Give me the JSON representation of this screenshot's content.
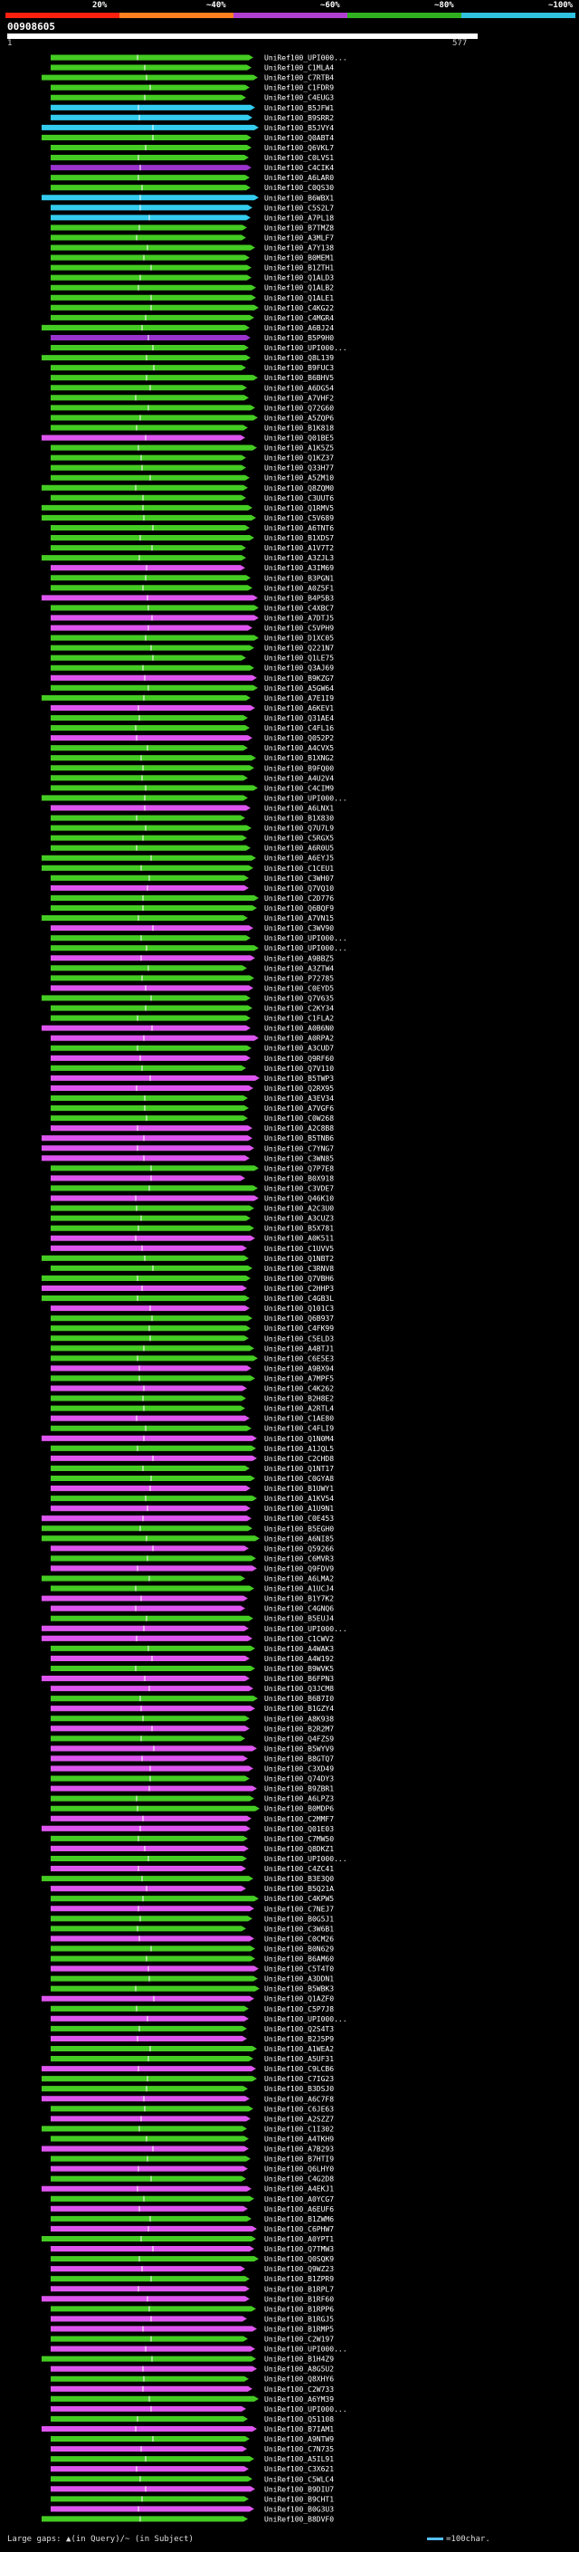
{
  "header": {
    "identity_scale": [
      {
        "label": "20%",
        "color": "#ff2010"
      },
      {
        "label": "~40%",
        "color": "#ff8020"
      },
      {
        "label": "~60%",
        "color": "#b040d0"
      },
      {
        "label": "~80%",
        "color": "#30b020"
      },
      {
        "label": "~100%",
        "color": "#30c0e0"
      }
    ],
    "query_id": "00908605",
    "range_start": "1",
    "range_end": "577"
  },
  "colors": {
    "green": "#44cc22",
    "magenta": "#dd55ee",
    "cyan": "#33ccee",
    "purple": "#9933cc",
    "gap": "#ffffff"
  },
  "footer": {
    "gaps_legend": "Large gaps: ▲(in Query)/~ (in Subject)",
    "scale_legend": "=100char."
  },
  "hits": [
    {
      "label": "UniRef100_UPI000...",
      "c": "g"
    },
    {
      "label": "UniRef100_C1MLA4",
      "c": "g"
    },
    {
      "label": "UniRef100_C7RTB4",
      "c": "g"
    },
    {
      "label": "UniRef100_C1FDR9",
      "c": "g"
    },
    {
      "label": "UniRef100_C4EUG3",
      "c": "g"
    },
    {
      "label": "UniRef100_B5JFW1",
      "c": "c"
    },
    {
      "label": "UniRef100_B9SRR2",
      "c": "c"
    },
    {
      "label": "UniRef100_B5JVY4",
      "c": "c"
    },
    {
      "label": "UniRef100_Q0ABT4",
      "c": "g"
    },
    {
      "label": "UniRef100_Q6VKL7",
      "c": "g"
    },
    {
      "label": "UniRef100_C0LVS1",
      "c": "g"
    },
    {
      "label": "UniRef100_C4CIK4",
      "c": "p"
    },
    {
      "label": "UniRef100_A6LAR0",
      "c": "g"
    },
    {
      "label": "UniRef100_C0QS30",
      "c": "g"
    },
    {
      "label": "UniRef100_B6WBX1",
      "c": "c"
    },
    {
      "label": "UniRef100_C5S2L7",
      "c": "c"
    },
    {
      "label": "UniRef100_A7PL18",
      "c": "c"
    },
    {
      "label": "UniRef100_B7TMZ8",
      "c": "g"
    },
    {
      "label": "UniRef100_A3MLF7",
      "c": "g"
    },
    {
      "label": "UniRef100_A7Y138",
      "c": "g"
    },
    {
      "label": "UniRef100_B0MEM1",
      "c": "g"
    },
    {
      "label": "UniRef100_B1ZTH1",
      "c": "g"
    },
    {
      "label": "UniRef100_Q1ALD3",
      "c": "g"
    },
    {
      "label": "UniRef100_Q1ALB2",
      "c": "g"
    },
    {
      "label": "UniRef100_Q1ALE1",
      "c": "g"
    },
    {
      "label": "UniRef100_C4KG22",
      "c": "g"
    },
    {
      "label": "UniRef100_C4MGR4",
      "c": "g"
    },
    {
      "label": "UniRef100_A6BJ24",
      "c": "g"
    },
    {
      "label": "UniRef100_B5P9H0",
      "c": "p"
    },
    {
      "label": "UniRef100_UPI000...",
      "c": "g"
    },
    {
      "label": "UniRef100_Q8L139",
      "c": "g"
    },
    {
      "label": "UniRef100_B9FUC3",
      "c": "g"
    },
    {
      "label": "UniRef100_B6BHV5",
      "c": "g"
    },
    {
      "label": "UniRef100_A6DG54",
      "c": "g"
    },
    {
      "label": "UniRef100_A7VHF2",
      "c": "g"
    },
    {
      "label": "UniRef100_Q72G60",
      "c": "g"
    },
    {
      "label": "UniRef100_A5ZQP6",
      "c": "g"
    },
    {
      "label": "UniRef100_B1K818",
      "c": "g"
    },
    {
      "label": "UniRef100_Q01BE5",
      "c": "m"
    },
    {
      "label": "UniRef100_A1K5Z5",
      "c": "g"
    },
    {
      "label": "UniRef100_Q1KZ37",
      "c": "g"
    },
    {
      "label": "UniRef100_Q33H77",
      "c": "g"
    },
    {
      "label": "UniRef100_A5ZM10",
      "c": "g"
    },
    {
      "label": "UniRef100_Q8ZQM0",
      "c": "g"
    },
    {
      "label": "UniRef100_C3UUT6",
      "c": "g"
    },
    {
      "label": "UniRef100_Q1RMV5",
      "c": "g"
    },
    {
      "label": "UniRef100_C5V689",
      "c": "g"
    },
    {
      "label": "UniRef100_A6TNT6",
      "c": "g"
    },
    {
      "label": "UniRef100_B1XDS7",
      "c": "g"
    },
    {
      "label": "UniRef100_A1V7T2",
      "c": "g"
    },
    {
      "label": "UniRef100_A3ZJL3",
      "c": "g"
    },
    {
      "label": "UniRef100_A3IM69",
      "c": "m"
    },
    {
      "label": "UniRef100_B3PGN1",
      "c": "g"
    },
    {
      "label": "UniRef100_A0Z5F1",
      "c": "g"
    },
    {
      "label": "UniRef100_B4P5B3",
      "c": "m"
    },
    {
      "label": "UniRef100_C4XBC7",
      "c": "g"
    },
    {
      "label": "UniRef100_A7DTJ5",
      "c": "m"
    },
    {
      "label": "UniRef100_C5VPH9",
      "c": "m"
    },
    {
      "label": "UniRef100_D1XC05",
      "c": "g"
    },
    {
      "label": "UniRef100_Q221N7",
      "c": "g"
    },
    {
      "label": "UniRef100_Q1LE75",
      "c": "g"
    },
    {
      "label": "UniRef100_Q3AJ69",
      "c": "g"
    },
    {
      "label": "UniRef100_B9KZG7",
      "c": "m"
    },
    {
      "label": "UniRef100_A5GW64",
      "c": "g"
    },
    {
      "label": "UniRef100_A7E1I9",
      "c": "g"
    },
    {
      "label": "UniRef100_A6KEV1",
      "c": "m"
    },
    {
      "label": "UniRef100_Q31AE4",
      "c": "g"
    },
    {
      "label": "UniRef100_C4FL16",
      "c": "g"
    },
    {
      "label": "UniRef100_Q052P2",
      "c": "m"
    },
    {
      "label": "UniRef100_A4CVX5",
      "c": "g"
    },
    {
      "label": "UniRef100_B1XNG2",
      "c": "g"
    },
    {
      "label": "UniRef100_B9FQ00",
      "c": "g"
    },
    {
      "label": "UniRef100_A4U2V4",
      "c": "g"
    },
    {
      "label": "UniRef100_C4CIM9",
      "c": "g"
    },
    {
      "label": "UniRef100_UPI000...",
      "c": "g"
    },
    {
      "label": "UniRef100_A6LNX1",
      "c": "m"
    },
    {
      "label": "UniRef100_B1X830",
      "c": "g"
    },
    {
      "label": "UniRef100_Q7U7L9",
      "c": "g"
    },
    {
      "label": "UniRef100_C5RGX5",
      "c": "g"
    },
    {
      "label": "UniRef100_A6R0U5",
      "c": "g"
    },
    {
      "label": "UniRef100_A6EYJ5",
      "c": "g"
    },
    {
      "label": "UniRef100_C1CEU1",
      "c": "g"
    },
    {
      "label": "UniRef100_C3WH07",
      "c": "g"
    },
    {
      "label": "UniRef100_Q7VQ10",
      "c": "m"
    },
    {
      "label": "UniRef100_C2D776",
      "c": "g"
    },
    {
      "label": "UniRef100_Q6BQF9",
      "c": "g"
    },
    {
      "label": "UniRef100_A7VN15",
      "c": "g"
    },
    {
      "label": "UniRef100_C3WV90",
      "c": "m"
    },
    {
      "label": "UniRef100_UPI000...",
      "c": "g"
    },
    {
      "label": "UniRef100_UPI000...",
      "c": "g"
    },
    {
      "label": "UniRef100_A9BBZ5",
      "c": "m"
    },
    {
      "label": "UniRef100_A3ZTW4",
      "c": "g"
    },
    {
      "label": "UniRef100_P72785",
      "c": "g"
    },
    {
      "label": "UniRef100_C0EYD5",
      "c": "m"
    },
    {
      "label": "UniRef100_Q7V635",
      "c": "g"
    },
    {
      "label": "UniRef100_C2KY34",
      "c": "g"
    },
    {
      "label": "UniRef100_C1FLA2",
      "c": "g"
    },
    {
      "label": "UniRef100_A0B6N0",
      "c": "m"
    },
    {
      "label": "UniRef100_A0RPA2",
      "c": "m"
    },
    {
      "label": "UniRef100_A3CUD7",
      "c": "g"
    },
    {
      "label": "UniRef100_Q9RF60",
      "c": "m"
    },
    {
      "label": "UniRef100_Q7V110",
      "c": "g"
    },
    {
      "label": "UniRef100_B5TWP3",
      "c": "m"
    },
    {
      "label": "UniRef100_Q2RX95",
      "c": "m"
    },
    {
      "label": "UniRef100_A3EV34",
      "c": "g"
    },
    {
      "label": "UniRef100_A7VGF6",
      "c": "g"
    },
    {
      "label": "UniRef100_C0W268",
      "c": "g"
    },
    {
      "label": "UniRef100_A2C8B8",
      "c": "m"
    },
    {
      "label": "UniRef100_B5TNB6",
      "c": "m"
    },
    {
      "label": "UniRef100_C7YNG7",
      "c": "m"
    },
    {
      "label": "UniRef100_C3WN85",
      "c": "m"
    },
    {
      "label": "UniRef100_Q7P7E8",
      "c": "g"
    },
    {
      "label": "UniRef100_B0X918",
      "c": "m"
    },
    {
      "label": "UniRef100_C3VDE7",
      "c": "g"
    },
    {
      "label": "UniRef100_Q46K10",
      "c": "m"
    },
    {
      "label": "UniRef100_A2C3U0",
      "c": "g"
    },
    {
      "label": "UniRef100_A3CUZ3",
      "c": "g"
    },
    {
      "label": "UniRef100_B5X781",
      "c": "g"
    },
    {
      "label": "UniRef100_A0K511",
      "c": "m"
    },
    {
      "label": "UniRef100_C1UVV5",
      "c": "m"
    },
    {
      "label": "UniRef100_Q1NBT2",
      "c": "g"
    },
    {
      "label": "UniRef100_C3RNV8",
      "c": "g"
    },
    {
      "label": "UniRef100_Q7VBH6",
      "c": "g"
    },
    {
      "label": "UniRef100_C2HHP3",
      "c": "m"
    },
    {
      "label": "UniRef100_C4GB3L",
      "c": "g"
    },
    {
      "label": "UniRef100_Q101C3",
      "c": "m"
    },
    {
      "label": "UniRef100_Q6B937",
      "c": "g"
    },
    {
      "label": "UniRef100_C4FK99",
      "c": "g"
    },
    {
      "label": "UniRef100_C5ELD3",
      "c": "g"
    },
    {
      "label": "UniRef100_A4BTJ1",
      "c": "g"
    },
    {
      "label": "UniRef100_C6E5E3",
      "c": "g"
    },
    {
      "label": "UniRef100_A9BX94",
      "c": "m"
    },
    {
      "label": "UniRef100_A7MPF5",
      "c": "g"
    },
    {
      "label": "UniRef100_C4K262",
      "c": "m"
    },
    {
      "label": "UniRef100_B2H8E2",
      "c": "g"
    },
    {
      "label": "UniRef100_A2RTL4",
      "c": "g"
    },
    {
      "label": "UniRef100_C1AE80",
      "c": "m"
    },
    {
      "label": "UniRef100_C4FLI9",
      "c": "g"
    },
    {
      "label": "UniRef100_Q1N0M4",
      "c": "m"
    },
    {
      "label": "UniRef100_A1JQL5",
      "c": "g"
    },
    {
      "label": "UniRef100_C2CHD8",
      "c": "m"
    },
    {
      "label": "UniRef100_Q1NT17",
      "c": "g"
    },
    {
      "label": "UniRef100_C0GYA8",
      "c": "g"
    },
    {
      "label": "UniRef100_B1UWY1",
      "c": "m"
    },
    {
      "label": "UniRef100_A1KV54",
      "c": "g"
    },
    {
      "label": "UniRef100_A1U9N1",
      "c": "m"
    },
    {
      "label": "UniRef100_C0E453",
      "c": "m"
    },
    {
      "label": "UniRef100_B5EGH0",
      "c": "g"
    },
    {
      "label": "UniRef100_A6NI85",
      "c": "g"
    },
    {
      "label": "UniRef100_Q59266",
      "c": "m"
    },
    {
      "label": "UniRef100_C6MVR3",
      "c": "g"
    },
    {
      "label": "UniRef100_Q9FDV9",
      "c": "m"
    },
    {
      "label": "UniRef100_A6LMA2",
      "c": "g"
    },
    {
      "label": "UniRef100_A1UCJ4",
      "c": "g"
    },
    {
      "label": "UniRef100_B1Y7K2",
      "c": "m"
    },
    {
      "label": "UniRef100_C4GNQ6",
      "c": "m"
    },
    {
      "label": "UniRef100_B5EUJ4",
      "c": "g"
    },
    {
      "label": "UniRef100_UPI000...",
      "c": "m"
    },
    {
      "label": "UniRef100_C1CWV2",
      "c": "m"
    },
    {
      "label": "UniRef100_A4WAK3",
      "c": "g"
    },
    {
      "label": "UniRef100_A4W192",
      "c": "m"
    },
    {
      "label": "UniRef100_B9WVK5",
      "c": "g"
    },
    {
      "label": "UniRef100_B6FPN3",
      "c": "m"
    },
    {
      "label": "UniRef100_Q3JCM8",
      "c": "m"
    },
    {
      "label": "UniRef100_B6B7I0",
      "c": "g"
    },
    {
      "label": "UniRef100_B1GZY4",
      "c": "m"
    },
    {
      "label": "UniRef100_A8K938",
      "c": "g"
    },
    {
      "label": "UniRef100_B2R2M7",
      "c": "m"
    },
    {
      "label": "UniRef100_Q4FZS9",
      "c": "g"
    },
    {
      "label": "UniRef100_B5WYV9",
      "c": "m"
    },
    {
      "label": "UniRef100_B8GTQ7",
      "c": "m"
    },
    {
      "label": "UniRef100_C3XD49",
      "c": "m"
    },
    {
      "label": "UniRef100_Q74DY3",
      "c": "g"
    },
    {
      "label": "UniRef100_B9ZBR1",
      "c": "m"
    },
    {
      "label": "UniRef100_A6LPZ3",
      "c": "g"
    },
    {
      "label": "UniRef100_B0MDP6",
      "c": "g"
    },
    {
      "label": "UniRef100_C2MMF7",
      "c": "m"
    },
    {
      "label": "UniRef100_Q01E03",
      "c": "m"
    },
    {
      "label": "UniRef100_C7MW50",
      "c": "g"
    },
    {
      "label": "UniRef100_Q8DKZ1",
      "c": "m"
    },
    {
      "label": "UniRef100_UPI000...",
      "c": "g"
    },
    {
      "label": "UniRef100_C4ZC41",
      "c": "m"
    },
    {
      "label": "UniRef100_B3E3Q0",
      "c": "g"
    },
    {
      "label": "UniRef100_B5Q21A",
      "c": "m"
    },
    {
      "label": "UniRef100_C4KPW5",
      "c": "g"
    },
    {
      "label": "UniRef100_C7NEJ7",
      "c": "m"
    },
    {
      "label": "UniRef100_B0G5J1",
      "c": "g"
    },
    {
      "label": "UniRef100_C3W6B1",
      "c": "g"
    },
    {
      "label": "UniRef100_C0CM26",
      "c": "m"
    },
    {
      "label": "UniRef100_B0N629",
      "c": "g"
    },
    {
      "label": "UniRef100_B6AM60",
      "c": "g"
    },
    {
      "label": "UniRef100_C5T4T0",
      "c": "m"
    },
    {
      "label": "UniRef100_A3DDN1",
      "c": "g"
    },
    {
      "label": "UniRef100_B5WBK3",
      "c": "g"
    },
    {
      "label": "UniRef100_Q1AZF0",
      "c": "m"
    },
    {
      "label": "UniRef100_C5P7J8",
      "c": "g"
    },
    {
      "label": "UniRef100_UPI000...",
      "c": "m"
    },
    {
      "label": "UniRef100_Q2S4T3",
      "c": "g"
    },
    {
      "label": "UniRef100_B2J5P9",
      "c": "m"
    },
    {
      "label": "UniRef100_A1WEA2",
      "c": "g"
    },
    {
      "label": "UniRef100_A5UF31",
      "c": "g"
    },
    {
      "label": "UniRef100_C9LCB6",
      "c": "m"
    },
    {
      "label": "UniRef100_C7IG23",
      "c": "g"
    },
    {
      "label": "UniRef100_B3DSJ0",
      "c": "g"
    },
    {
      "label": "UniRef100_A6C7F8",
      "c": "m"
    },
    {
      "label": "UniRef100_C6JE63",
      "c": "g"
    },
    {
      "label": "UniRef100_A2SZZ7",
      "c": "m"
    },
    {
      "label": "UniRef100_C1I302",
      "c": "g"
    },
    {
      "label": "UniRef100_A4TKH9",
      "c": "g"
    },
    {
      "label": "UniRef100_A7B293",
      "c": "m"
    },
    {
      "label": "UniRef100_B7HTI9",
      "c": "g"
    },
    {
      "label": "UniRef100_Q6LHY0",
      "c": "m"
    },
    {
      "label": "UniRef100_C4G2D8",
      "c": "g"
    },
    {
      "label": "UniRef100_A4EKJ1",
      "c": "m"
    },
    {
      "label": "UniRef100_A0YCG7",
      "c": "g"
    },
    {
      "label": "UniRef100_A6EUF6",
      "c": "m"
    },
    {
      "label": "UniRef100_B1ZWM6",
      "c": "g"
    },
    {
      "label": "UniRef100_C6PHW7",
      "c": "m"
    },
    {
      "label": "UniRef100_A0YPT1",
      "c": "g"
    },
    {
      "label": "UniRef100_Q7TMW3",
      "c": "m"
    },
    {
      "label": "UniRef100_Q0SQK9",
      "c": "g"
    },
    {
      "label": "UniRef100_Q9WZ23",
      "c": "m"
    },
    {
      "label": "UniRef100_B1ZPR9",
      "c": "g"
    },
    {
      "label": "UniRef100_B1RPL7",
      "c": "m"
    },
    {
      "label": "UniRef100_B1RF60",
      "c": "m"
    },
    {
      "label": "UniRef100_B1RPP6",
      "c": "g"
    },
    {
      "label": "UniRef100_B1RGJ5",
      "c": "m"
    },
    {
      "label": "UniRef100_B1RMP5",
      "c": "m"
    },
    {
      "label": "UniRef100_C2W197",
      "c": "g"
    },
    {
      "label": "UniRef100_UPI000...",
      "c": "m"
    },
    {
      "label": "UniRef100_B1H4Z9",
      "c": "g"
    },
    {
      "label": "UniRef100_A8G5U2",
      "c": "m"
    },
    {
      "label": "UniRef100_Q8XHY6",
      "c": "g"
    },
    {
      "label": "UniRef100_C2W733",
      "c": "m"
    },
    {
      "label": "UniRef100_A6YM39",
      "c": "g"
    },
    {
      "label": "UniRef100_UPI000...",
      "c": "m"
    },
    {
      "label": "UniRef100_Q51108",
      "c": "g"
    },
    {
      "label": "UniRef100_B7IAM1",
      "c": "m"
    },
    {
      "label": "UniRef100_A9NTW9",
      "c": "g"
    },
    {
      "label": "UniRef100_C7N735",
      "c": "m"
    },
    {
      "label": "UniRef100_A5IL91",
      "c": "g"
    },
    {
      "label": "UniRef100_C3X621",
      "c": "m"
    },
    {
      "label": "UniRef100_C5WLC4",
      "c": "g"
    },
    {
      "label": "UniRef100_B9DIU7",
      "c": "m"
    },
    {
      "label": "UniRef100_B9CHT1",
      "c": "g"
    },
    {
      "label": "UniRef100_B0G3U3",
      "c": "m"
    },
    {
      "label": "UniRef100_B8DVF0",
      "c": "g"
    }
  ]
}
